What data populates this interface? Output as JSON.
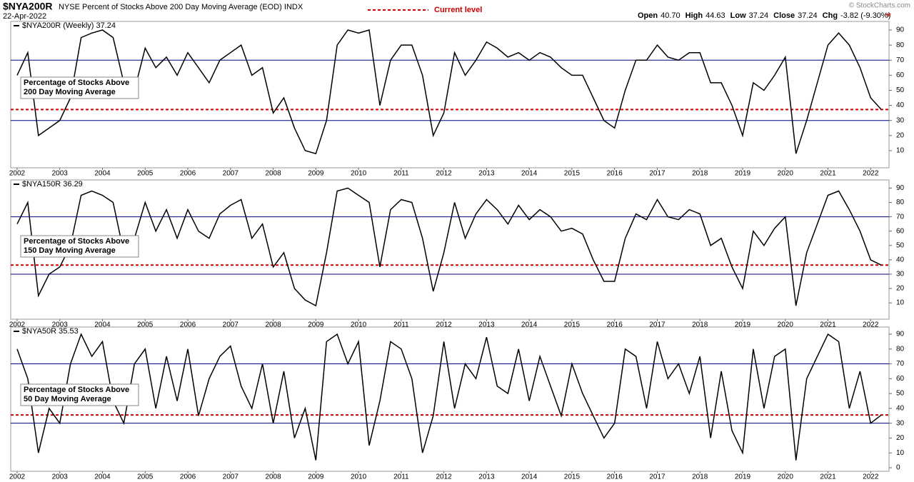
{
  "header": {
    "symbol": "$NYA200R",
    "description": "NYSE Percent of Stocks Above 200 Day Moving Average (EOD) INDX",
    "date": "22-Apr-2022",
    "legend": "Current level",
    "quote": [
      {
        "label": "Open",
        "value": "40.70"
      },
      {
        "label": "High",
        "value": "44.63"
      },
      {
        "label": "Low",
        "value": "37.24"
      },
      {
        "label": "Close",
        "value": "37.24"
      },
      {
        "label": "Chg",
        "value": "-3.82 (-9.30%)"
      }
    ],
    "credit": "© StockCharts.com"
  },
  "chart_data": [
    {
      "type": "line",
      "title": "$NYA200R (Weekly) 37.24",
      "annotation": [
        "Percentage of Stocks Above",
        "200 Day Moving Average"
      ],
      "color": "#000000",
      "current_level": 37.24,
      "current_color": "#cc0000",
      "hlines": [
        70,
        30
      ],
      "hline_color": "#000080",
      "grid": false,
      "xlim": [
        2001.85,
        2022.43
      ],
      "xticks": [
        2002,
        2003,
        2004,
        2005,
        2006,
        2007,
        2008,
        2009,
        2010,
        2011,
        2012,
        2013,
        2014,
        2015,
        2016,
        2017,
        2018,
        2019,
        2020,
        2021,
        2022
      ],
      "ylim": [
        -1.4,
        95.7
      ],
      "yticks": [
        10,
        20,
        30,
        40,
        50,
        60,
        70,
        80,
        90
      ],
      "x": [
        2002,
        2002.25,
        2002.5,
        2002.75,
        2003,
        2003.25,
        2003.5,
        2003.75,
        2004,
        2004.25,
        2004.5,
        2004.75,
        2005,
        2005.25,
        2005.5,
        2005.75,
        2006,
        2006.25,
        2006.5,
        2006.75,
        2007,
        2007.25,
        2007.5,
        2007.75,
        2008,
        2008.25,
        2008.5,
        2008.75,
        2009,
        2009.25,
        2009.5,
        2009.75,
        2010,
        2010.25,
        2010.5,
        2010.75,
        2011,
        2011.25,
        2011.5,
        2011.75,
        2012,
        2012.25,
        2012.5,
        2012.75,
        2013,
        2013.25,
        2013.5,
        2013.75,
        2014,
        2014.25,
        2014.5,
        2014.75,
        2015,
        2015.25,
        2015.5,
        2015.75,
        2016,
        2016.25,
        2016.5,
        2016.75,
        2017,
        2017.25,
        2017.5,
        2017.75,
        2018,
        2018.25,
        2018.5,
        2018.75,
        2019,
        2019.25,
        2019.5,
        2019.75,
        2020,
        2020.25,
        2020.5,
        2020.75,
        2021,
        2021.25,
        2021.5,
        2021.75,
        2022,
        2022.25
      ],
      "values": [
        60,
        75,
        20,
        25,
        30,
        45,
        85,
        88,
        90,
        85,
        55,
        50,
        78,
        65,
        72,
        60,
        75,
        65,
        55,
        70,
        75,
        80,
        60,
        65,
        35,
        45,
        25,
        10,
        8,
        30,
        80,
        90,
        88,
        90,
        40,
        70,
        80,
        80,
        60,
        20,
        35,
        75,
        60,
        70,
        82,
        78,
        72,
        75,
        70,
        75,
        72,
        65,
        60,
        60,
        45,
        30,
        25,
        50,
        70,
        70,
        80,
        72,
        70,
        75,
        75,
        55,
        55,
        40,
        20,
        55,
        50,
        60,
        72,
        8,
        30,
        55,
        80,
        88,
        80,
        65,
        45,
        37.24
      ]
    },
    {
      "type": "line",
      "title": "$NYA150R 36.29",
      "annotation": [
        "Percentage of Stocks Above",
        "150 Day Moving Average"
      ],
      "color": "#000000",
      "current_level": 36.29,
      "current_color": "#cc0000",
      "hlines": [
        70,
        30
      ],
      "hline_color": "#000080",
      "grid": false,
      "xlim": [
        2001.85,
        2022.43
      ],
      "xticks": [
        2002,
        2003,
        2004,
        2005,
        2006,
        2007,
        2008,
        2009,
        2010,
        2011,
        2012,
        2013,
        2014,
        2015,
        2016,
        2017,
        2018,
        2019,
        2020,
        2021,
        2022
      ],
      "ylim": [
        -1.4,
        95.7
      ],
      "yticks": [
        10,
        20,
        30,
        40,
        50,
        60,
        70,
        80,
        90
      ],
      "x": [
        2002,
        2002.25,
        2002.5,
        2002.75,
        2003,
        2003.25,
        2003.5,
        2003.75,
        2004,
        2004.25,
        2004.5,
        2004.75,
        2005,
        2005.25,
        2005.5,
        2005.75,
        2006,
        2006.25,
        2006.5,
        2006.75,
        2007,
        2007.25,
        2007.5,
        2007.75,
        2008,
        2008.25,
        2008.5,
        2008.75,
        2009,
        2009.25,
        2009.5,
        2009.75,
        2010,
        2010.25,
        2010.5,
        2010.75,
        2011,
        2011.25,
        2011.5,
        2011.75,
        2012,
        2012.25,
        2012.5,
        2012.75,
        2013,
        2013.25,
        2013.5,
        2013.75,
        2014,
        2014.25,
        2014.5,
        2014.75,
        2015,
        2015.25,
        2015.5,
        2015.75,
        2016,
        2016.25,
        2016.5,
        2016.75,
        2017,
        2017.25,
        2017.5,
        2017.75,
        2018,
        2018.25,
        2018.5,
        2018.75,
        2019,
        2019.25,
        2019.5,
        2019.75,
        2020,
        2020.25,
        2020.5,
        2020.75,
        2021,
        2021.25,
        2021.5,
        2021.75,
        2022,
        2022.25
      ],
      "values": [
        65,
        80,
        15,
        30,
        35,
        50,
        85,
        88,
        85,
        80,
        45,
        55,
        80,
        60,
        75,
        55,
        75,
        60,
        55,
        72,
        78,
        82,
        55,
        65,
        35,
        45,
        20,
        12,
        8,
        45,
        88,
        90,
        85,
        80,
        35,
        75,
        82,
        80,
        55,
        18,
        45,
        80,
        55,
        72,
        82,
        75,
        65,
        78,
        68,
        75,
        70,
        60,
        62,
        58,
        40,
        25,
        25,
        55,
        72,
        68,
        82,
        70,
        68,
        75,
        72,
        50,
        55,
        35,
        20,
        60,
        50,
        62,
        70,
        8,
        45,
        65,
        85,
        88,
        75,
        60,
        40,
        36.29
      ]
    },
    {
      "type": "line",
      "title": "$NYA50R 35.53",
      "annotation": [
        "Percentage of Stocks Above",
        "50 Day Moving Average"
      ],
      "color": "#000000",
      "current_level": 35.53,
      "current_color": "#cc0000",
      "hlines": [
        70,
        30
      ],
      "hline_color": "#000080",
      "grid": false,
      "xlim": [
        2001.85,
        2022.43
      ],
      "xticks": [
        2002,
        2003,
        2004,
        2005,
        2006,
        2007,
        2008,
        2009,
        2010,
        2011,
        2012,
        2013,
        2014,
        2015,
        2016,
        2017,
        2018,
        2019,
        2020,
        2021,
        2022
      ],
      "ylim": [
        -2.4,
        94.8
      ],
      "yticks": [
        0,
        10,
        20,
        30,
        40,
        50,
        60,
        70,
        80,
        90
      ],
      "x": [
        2002,
        2002.25,
        2002.5,
        2002.75,
        2003,
        2003.25,
        2003.5,
        2003.75,
        2004,
        2004.25,
        2004.5,
        2004.75,
        2005,
        2005.25,
        2005.5,
        2005.75,
        2006,
        2006.25,
        2006.5,
        2006.75,
        2007,
        2007.25,
        2007.5,
        2007.75,
        2008,
        2008.25,
        2008.5,
        2008.75,
        2009,
        2009.25,
        2009.5,
        2009.75,
        2010,
        2010.25,
        2010.5,
        2010.75,
        2011,
        2011.25,
        2011.5,
        2011.75,
        2012,
        2012.25,
        2012.5,
        2012.75,
        2013,
        2013.25,
        2013.5,
        2013.75,
        2014,
        2014.25,
        2014.5,
        2014.75,
        2015,
        2015.25,
        2015.5,
        2015.75,
        2016,
        2016.25,
        2016.5,
        2016.75,
        2017,
        2017.25,
        2017.5,
        2017.75,
        2018,
        2018.25,
        2018.5,
        2018.75,
        2019,
        2019.25,
        2019.5,
        2019.75,
        2020,
        2020.25,
        2020.5,
        2020.75,
        2021,
        2021.25,
        2021.5,
        2021.75,
        2022,
        2022.25
      ],
      "values": [
        80,
        60,
        10,
        40,
        30,
        70,
        90,
        75,
        85,
        45,
        30,
        70,
        80,
        40,
        75,
        45,
        80,
        35,
        60,
        75,
        82,
        55,
        40,
        70,
        30,
        65,
        20,
        40,
        5,
        85,
        90,
        70,
        85,
        15,
        45,
        85,
        80,
        60,
        10,
        35,
        85,
        40,
        70,
        60,
        88,
        55,
        50,
        80,
        45,
        75,
        55,
        35,
        70,
        50,
        35,
        20,
        30,
        80,
        75,
        40,
        85,
        60,
        70,
        50,
        75,
        20,
        65,
        25,
        10,
        80,
        40,
        75,
        80,
        5,
        60,
        75,
        90,
        85,
        40,
        65,
        30,
        35.53
      ]
    }
  ]
}
